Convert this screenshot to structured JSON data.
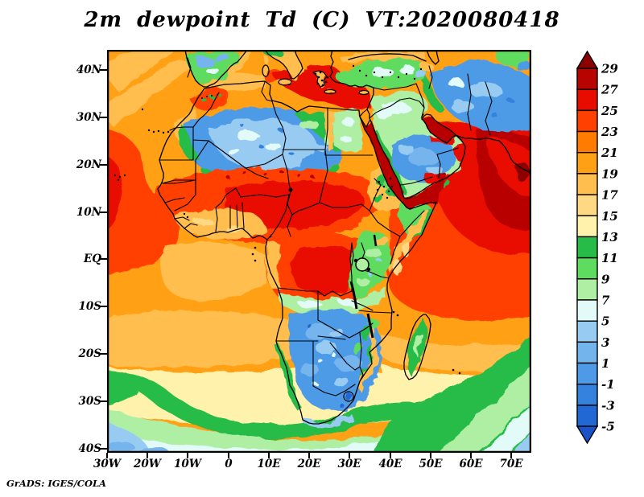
{
  "title": "2m dewpoint Td (C) VT:2020080418",
  "credit": "GrADS: IGES/COLA",
  "axes": {
    "y_labels": [
      "40N",
      "30N",
      "20N",
      "10N",
      "EQ",
      "10S",
      "20S",
      "30S",
      "40S"
    ],
    "x_labels": [
      "30W",
      "20W",
      "10W",
      "0",
      "10E",
      "20E",
      "30E",
      "40E",
      "50E",
      "60E",
      "70E"
    ]
  },
  "chart_data": {
    "type": "heatmap",
    "title": "2m dewpoint Td (C) VT:2020080418",
    "variable": "2-meter dewpoint temperature",
    "units": "C",
    "valid_time": "2020080418",
    "region": "Africa, Middle East and adjacent oceans",
    "lon_range": [
      -30,
      75
    ],
    "lat_range": [
      -41,
      44
    ],
    "x_ticks": [
      "30W",
      "20W",
      "10W",
      "0",
      "10E",
      "20E",
      "30E",
      "40E",
      "50E",
      "60E",
      "70E"
    ],
    "y_ticks": [
      "40N",
      "30N",
      "20N",
      "10N",
      "EQ",
      "10S",
      "20S",
      "30S",
      "40S"
    ],
    "grid": false,
    "colorbar": {
      "position": "right",
      "labels_top_to_bottom": [
        "29",
        "27",
        "25",
        "23",
        "21",
        "19",
        "17",
        "15",
        "13",
        "11",
        "9",
        "7",
        "5",
        "3",
        "1",
        "-1",
        "-3",
        "-5"
      ],
      "colors_top_to_bottom": [
        "#8C0000",
        "#B80400",
        "#E80C00",
        "#FF4000",
        "#FF7C00",
        "#FFA015",
        "#FFBE4E",
        "#FFD884",
        "#FFF2AC",
        "#27BC47",
        "#5FDC60",
        "#AEEFA4",
        "#E2FAF8",
        "#98CBF2",
        "#74B4EC",
        "#4E9AE6",
        "#3482DE",
        "#2268D4",
        "#1A52C8"
      ]
    },
    "features": [
      {
        "region": "Sahara interior (Mauritania/Mali/Algeria/Libya)",
        "td_c": "-1 to 7"
      },
      {
        "region": "Sahel belt and Congo basin",
        "td_c": "21 to 27"
      },
      {
        "region": "Gulf of Guinea coast",
        "td_c": "17 to 21"
      },
      {
        "region": "Subtropical North Atlantic",
        "td_c": "19 to 23"
      },
      {
        "region": "Eastern tropical Atlantic",
        "td_c": "23 to 25"
      },
      {
        "region": "Mediterranean Sea (Tyrrhenian/Aegean/Levant)",
        "td_c": "25 to 27"
      },
      {
        "region": "Red Sea, Persian Gulf, Gulf of Aden",
        "td_c": "27 to 29+"
      },
      {
        "region": "Arabian Sea / NW Indian Ocean",
        "td_c": "25 to 29+"
      },
      {
        "region": "Arabian Peninsula interior",
        "td_c": "-1 to 7"
      },
      {
        "region": "Iran / Afghanistan interior",
        "td_c": "-1 to 5"
      },
      {
        "region": "Ethiopian Highlands and East Africa",
        "td_c": "9 to 15"
      },
      {
        "region": "Southern Africa interior (winter)",
        "td_c": "-5 to 3"
      },
      {
        "region": "Madagascar interior",
        "td_c": "9 to 13"
      },
      {
        "region": "South Atlantic / SW Indian Ocean frontal bands",
        "td_c": "7 to 13"
      },
      {
        "region": "Southern Ocean cold sectors",
        "td_c": "1 to 7"
      },
      {
        "region": "Mid-latitude South Atlantic",
        "td_c": "13 to 19"
      }
    ]
  }
}
